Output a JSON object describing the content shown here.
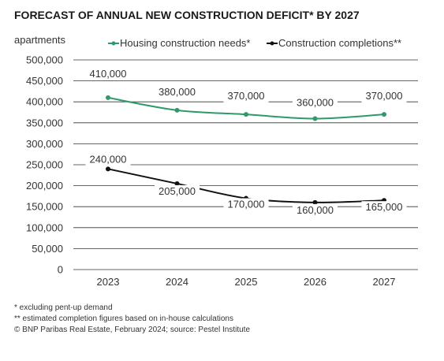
{
  "chart_data": {
    "type": "line",
    "title": "FORECAST OF ANNUAL NEW CONSTRUCTION DEFICIT* BY 2027",
    "ylabel": "apartments",
    "xlabel": "",
    "categories": [
      "2023",
      "2024",
      "2025",
      "2026",
      "2027"
    ],
    "ylim": [
      0,
      500000
    ],
    "ytick_values": [
      0,
      50000,
      100000,
      150000,
      200000,
      250000,
      300000,
      350000,
      400000,
      450000,
      500000
    ],
    "ytick_labels": [
      "0",
      "50,000",
      "100,000",
      "150,000",
      "200,000",
      "250,000",
      "300,000",
      "350,000",
      "400,000",
      "450,000",
      "500,000"
    ],
    "grid": true,
    "legend_position": "top",
    "series": [
      {
        "name": "Housing construction needs*",
        "color": "#2e9a6b",
        "values": [
          410000,
          380000,
          370000,
          360000,
          370000
        ],
        "labels": [
          "410,000",
          "380,000",
          "370,000",
          "360,000",
          "370,000"
        ]
      },
      {
        "name": "Construction completions**",
        "color": "#111111",
        "values": [
          240000,
          205000,
          170000,
          160000,
          165000
        ],
        "labels": [
          "240,000",
          "205,000",
          "170,000",
          "160,000",
          "165,000"
        ]
      }
    ],
    "footnotes": [
      "* excluding pent-up demand",
      "** estimated completion figures based on in-house calculations",
      "© BNP Paribas Real Estate, February 2024; source: Pestel Institute"
    ]
  }
}
